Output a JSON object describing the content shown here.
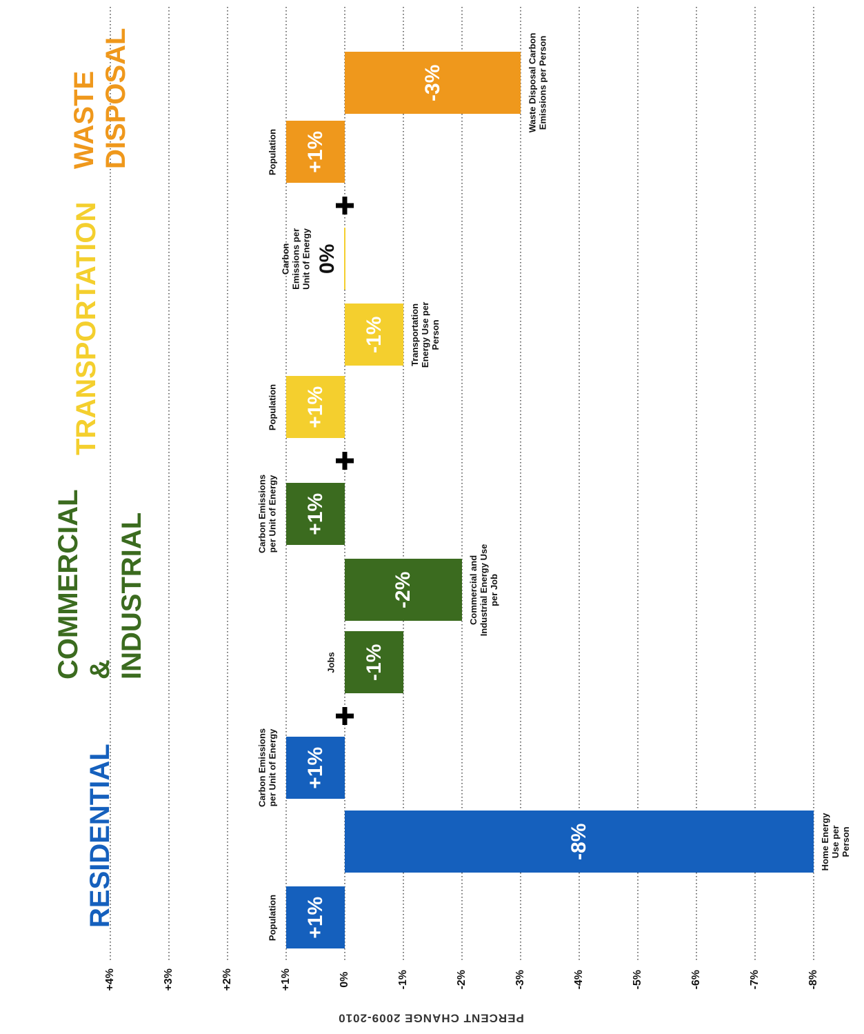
{
  "chart_data": {
    "type": "bar",
    "orientation": "horizontal",
    "axis_title": "PERCENT CHANGE 2009-2010",
    "xlim": [
      4,
      -8
    ],
    "xticks": [
      {
        "value": 4,
        "label": "+4%"
      },
      {
        "value": 3,
        "label": "+3%"
      },
      {
        "value": 2,
        "label": "+2%"
      },
      {
        "value": 1,
        "label": "+1%"
      },
      {
        "value": 0,
        "label": "0%"
      },
      {
        "value": -1,
        "label": "-1%"
      },
      {
        "value": -2,
        "label": "-2%"
      },
      {
        "value": -3,
        "label": "-3%"
      },
      {
        "value": -4,
        "label": "-4%"
      },
      {
        "value": -5,
        "label": "-5%"
      },
      {
        "value": -6,
        "label": "-6%"
      },
      {
        "value": -7,
        "label": "-7%"
      },
      {
        "value": -8,
        "label": "-8%"
      }
    ],
    "grid": true,
    "series": [
      {
        "name": "RESIDENTIAL",
        "color": "#1560bd",
        "categories": [
          "Population",
          "Home Energy Use per Person",
          "Carbon Emissions per Unit of Energy"
        ],
        "values": [
          1,
          -8,
          1
        ],
        "value_labels": [
          "+1%",
          "-8%",
          "+1%"
        ]
      },
      {
        "name": "COMMERCIAL & INDUSTRIAL",
        "color": "#3b6b1f",
        "categories": [
          "Jobs",
          "Commercial and Industrial Energy Use per Job",
          "Carbon Emissions per Unit of Energy"
        ],
        "values": [
          -1,
          -2,
          1
        ],
        "value_labels": [
          "-1%",
          "-2%",
          "+1%"
        ]
      },
      {
        "name": "TRANSPORTATION",
        "color": "#f4cf2e",
        "categories": [
          "Population",
          "Transportation Energy Use per Person",
          "Carbon Emissions per Unit of Energy"
        ],
        "values": [
          1,
          -1,
          0
        ],
        "value_labels": [
          "+1%",
          "-1%",
          "0%"
        ]
      },
      {
        "name": "WASTE DISPOSAL",
        "color": "#ef981c",
        "categories": [
          "Population",
          "Waste Disposal Carbon Emissions per Person"
        ],
        "values": [
          1,
          -3
        ],
        "value_labels": [
          "+1%",
          "-3%"
        ]
      }
    ]
  }
}
